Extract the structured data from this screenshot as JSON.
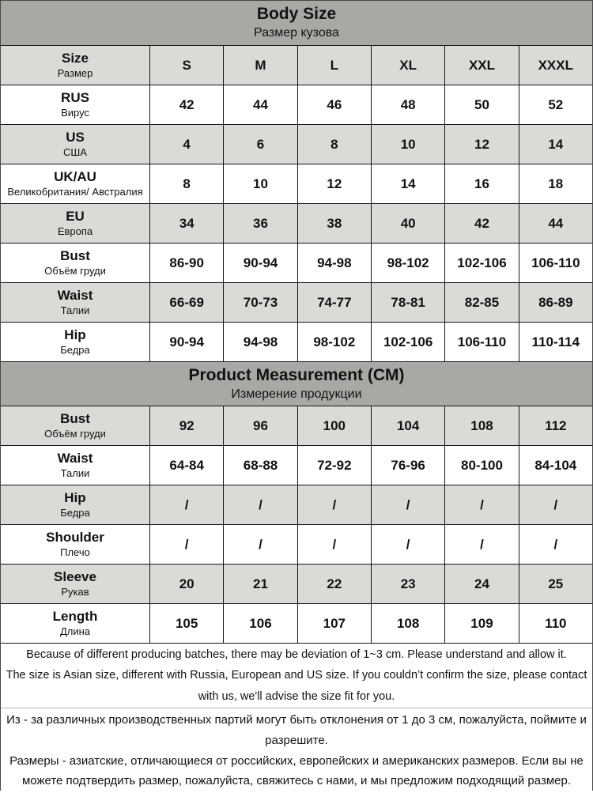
{
  "colors": {
    "header_bg": "#aaa8a5",
    "shaded_row_bg": "#dbdad7",
    "plain_row_bg": "#ffffff",
    "border": "#151515",
    "text": "#121212"
  },
  "body_size": {
    "title": "Body Size",
    "subtitle": "Размер кузова",
    "rows": [
      {
        "label": "Size",
        "label_ru": "Размер",
        "values": [
          "S",
          "M",
          "L",
          "XL",
          "XXL",
          "XXXL"
        ]
      },
      {
        "label": "RUS",
        "label_ru": "Вирус",
        "values": [
          "42",
          "44",
          "46",
          "48",
          "50",
          "52"
        ]
      },
      {
        "label": "US",
        "label_ru": "США",
        "values": [
          "4",
          "6",
          "8",
          "10",
          "12",
          "14"
        ]
      },
      {
        "label": "UK/AU",
        "label_ru": "Великобритания/ Австралия",
        "values": [
          "8",
          "10",
          "12",
          "14",
          "16",
          "18"
        ]
      },
      {
        "label": "EU",
        "label_ru": "Европа",
        "values": [
          "34",
          "36",
          "38",
          "40",
          "42",
          "44"
        ]
      },
      {
        "label": "Bust",
        "label_ru": "Объём груди",
        "values": [
          "86-90",
          "90-94",
          "94-98",
          "98-102",
          "102-106",
          "106-110"
        ]
      },
      {
        "label": "Waist",
        "label_ru": "Талии",
        "values": [
          "66-69",
          "70-73",
          "74-77",
          "78-81",
          "82-85",
          "86-89"
        ]
      },
      {
        "label": "Hip",
        "label_ru": "Бедра",
        "values": [
          "90-94",
          "94-98",
          "98-102",
          "102-106",
          "106-110",
          "110-114"
        ]
      }
    ]
  },
  "product_measurement": {
    "title": "Product Measurement (CM)",
    "subtitle": "Измерение продукции",
    "rows": [
      {
        "label": "Bust",
        "label_ru": "Объём груди",
        "values": [
          "92",
          "96",
          "100",
          "104",
          "108",
          "112"
        ]
      },
      {
        "label": "Waist",
        "label_ru": "Талии",
        "values": [
          "64-84",
          "68-88",
          "72-92",
          "76-96",
          "80-100",
          "84-104"
        ]
      },
      {
        "label": "Hip",
        "label_ru": "Бедра",
        "values": [
          "/",
          "/",
          "/",
          "/",
          "/",
          "/"
        ]
      },
      {
        "label": "Shoulder",
        "label_ru": "Плечо",
        "values": [
          "/",
          "/",
          "/",
          "/",
          "/",
          "/"
        ]
      },
      {
        "label": "Sleeve",
        "label_ru": "Рукав",
        "values": [
          "20",
          "21",
          "22",
          "23",
          "24",
          "25"
        ]
      },
      {
        "label": "Length",
        "label_ru": "Длина",
        "values": [
          "105",
          "106",
          "107",
          "108",
          "109",
          "110"
        ]
      }
    ]
  },
  "notes": {
    "english": [
      "Because of different producing batches, there may be deviation of 1~3 cm. Please understand and allow it.",
      "The size is Asian size, different with Russia, European and US size. If you couldn’t confirm the size, please contact with us, we'll advise the size fit for you."
    ],
    "russian": [
      "Из - за различных производственных партий могут быть отклонения от 1 до 3 см, пожалуйста, поймите и разрешите.",
      "Размеры - азиатские, отличающиеся от российских, европейских и американских размеров. Если вы не можете подтвердить размер, пожалуйста, свяжитесь с нами, и мы предложим подходящий размер."
    ]
  }
}
